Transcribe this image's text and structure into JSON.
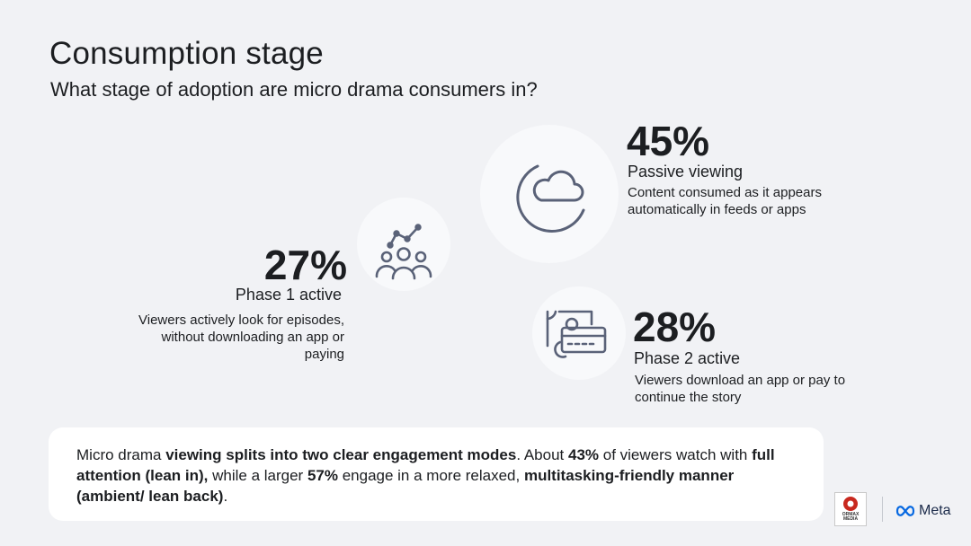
{
  "header": {
    "title": "Consumption stage",
    "subtitle": "What stage of adoption are micro drama consumers in?"
  },
  "stages": [
    {
      "percent": "45%",
      "label": "Passive viewing",
      "description": "Content consumed as it appears automatically in feeds or apps",
      "icon": "moon-cloud-icon"
    },
    {
      "percent": "27%",
      "label": "Phase 1 active",
      "description": "Viewers actively look for episodes, without downloading an app or paying",
      "icon": "audience-growth-icon"
    },
    {
      "percent": "28%",
      "label": "Phase 2 active",
      "description": "Viewers download an app or pay to continue the story",
      "icon": "payment-card-icon"
    }
  ],
  "summary": {
    "p1": "Micro drama ",
    "b1": "viewing splits into two clear engagement modes",
    "p2": ". About ",
    "b2": "43%",
    "p3": " of viewers watch with ",
    "b3": "full attention (lean in),",
    "p4": " while a larger ",
    "b4": "57%",
    "p5": " engage in a more relaxed, ",
    "b5": "multitasking-friendly manner (ambient/ lean back)",
    "p6": "."
  },
  "logos": {
    "ormax_line1": "ORMAX",
    "ormax_line2": "MEDIA",
    "meta": "Meta"
  },
  "colors": {
    "background": "#f1f2f5",
    "icon_stroke": "#5a6278",
    "ormax_red": "#c8281e",
    "meta_blue": "#0668e1"
  }
}
